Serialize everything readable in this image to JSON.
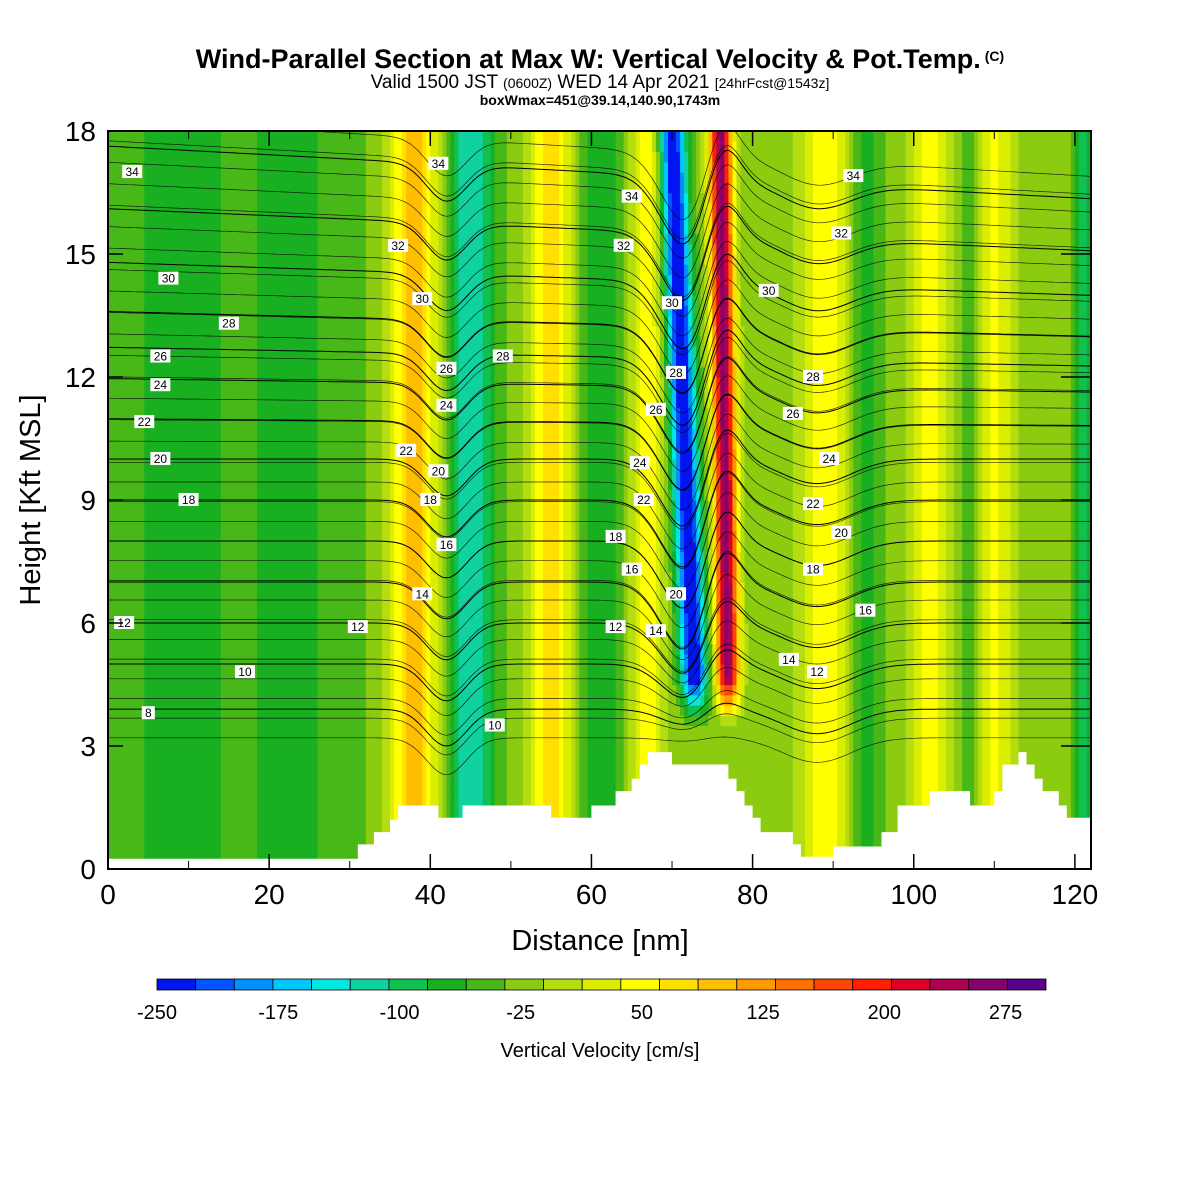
{
  "header": {
    "title": "Wind-Parallel Section at Max W: Vertical Velocity & Pot.Temp.",
    "title_mark": "(C)",
    "valid_prefix": "Valid 1500 JST",
    "valid_utc": "(0600Z)",
    "valid_date": "WED 14 Apr 2021",
    "forecast": "[24hrFcst@1543z]",
    "box_info": "boxWmax=451@39.14,140.90,1743m"
  },
  "chart_data": {
    "type": "heatmap",
    "subtype": "vertical cross-section: filled contours of vertical velocity with potential-temperature contour lines",
    "xlabel": "Distance [nm]",
    "ylabel": "Height [Kft MSL]",
    "xlim": [
      0,
      122
    ],
    "ylim": [
      0,
      18
    ],
    "x_ticks": [
      0,
      20,
      40,
      60,
      80,
      100,
      120
    ],
    "y_ticks": [
      0,
      3,
      6,
      9,
      12,
      15,
      18
    ],
    "colorbar": {
      "label": "Vertical Velocity [cm/s]",
      "tick_labels": [
        "-250",
        "-175",
        "-100",
        "-25",
        "50",
        "125",
        "200",
        "275"
      ],
      "tick_values": [
        -250,
        -175,
        -100,
        -25,
        50,
        125,
        200,
        275
      ],
      "bounds": [
        -250,
        -225,
        -200,
        -175,
        -150,
        -125,
        -100,
        -75,
        -50,
        -25,
        0,
        25,
        50,
        75,
        100,
        125,
        150,
        175,
        200,
        225,
        250,
        275,
        300
      ],
      "colors": [
        "#0015f0",
        "#0055ff",
        "#0090ff",
        "#00c8ff",
        "#00e8e0",
        "#10d2a0",
        "#10c050",
        "#18b020",
        "#48b818",
        "#8ccc10",
        "#b4de10",
        "#dcee00",
        "#ffff00",
        "#ffe000",
        "#ffbe00",
        "#ff9a00",
        "#ff7000",
        "#ff4600",
        "#ff1e00",
        "#dc0025",
        "#b00050",
        "#860070",
        "#5a0088"
      ]
    },
    "updraft_core": {
      "x": [
        76,
        77
      ],
      "y": [
        3.5,
        18
      ],
      "w_max_cm_s": 300
    },
    "downdraft_core": {
      "x": [
        70,
        73
      ],
      "y": [
        3.5,
        18
      ],
      "w_min_cm_s": -250
    },
    "vertical_velocity_bands": [
      {
        "x": 8,
        "width": 10,
        "w": -40
      },
      {
        "x": 24,
        "width": 8,
        "w": -35
      },
      {
        "x": 38,
        "width": 3,
        "w": 130
      },
      {
        "x": 45,
        "width": 3,
        "w": -110
      },
      {
        "x": 55,
        "width": 2.5,
        "w": 110
      },
      {
        "x": 61,
        "width": 2.5,
        "w": -60
      },
      {
        "x": 67,
        "width": 2,
        "w": 80
      },
      {
        "x": 89,
        "width": 3,
        "w": 90
      },
      {
        "x": 94,
        "width": 2,
        "w": -50
      },
      {
        "x": 102,
        "width": 2.5,
        "w": 80
      },
      {
        "x": 107,
        "width": 1.5,
        "w": -40
      },
      {
        "x": 110,
        "width": 2.5,
        "w": 70
      },
      {
        "x": 121,
        "width": 1,
        "w": -70
      }
    ],
    "terrain": {
      "x": [
        0,
        30,
        31,
        33,
        35,
        36,
        40,
        41,
        44,
        54,
        55,
        56,
        57,
        59,
        60,
        61,
        62,
        63,
        64,
        65,
        66,
        67,
        69,
        70,
        72,
        73,
        74,
        77,
        78,
        79,
        80,
        81,
        85,
        86,
        90,
        92,
        96,
        98,
        102,
        103,
        106,
        107,
        110,
        111,
        113,
        114,
        115,
        116,
        118,
        119,
        121,
        122
      ],
      "height": [
        0.25,
        0.25,
        0.6,
        0.9,
        1.2,
        1.55,
        1.55,
        1.25,
        1.55,
        1.55,
        1.25,
        1.25,
        1.25,
        1.25,
        1.55,
        1.55,
        1.55,
        1.9,
        1.9,
        2.2,
        2.55,
        2.85,
        2.85,
        2.55,
        2.55,
        2.55,
        2.55,
        2.2,
        1.9,
        1.55,
        1.25,
        0.9,
        0.6,
        0.3,
        0.55,
        0.55,
        0.9,
        1.55,
        1.9,
        1.9,
        1.9,
        1.55,
        1.9,
        2.55,
        2.85,
        2.55,
        2.2,
        1.9,
        1.55,
        1.25,
        1.25,
        1.25
      ]
    },
    "theta_contours": {
      "levels": [
        8,
        10,
        12,
        14,
        16,
        18,
        20,
        22,
        24,
        26,
        28,
        30,
        32,
        34
      ],
      "base_height_kft": {
        "8": 3.9,
        "10": 5.0,
        "12": 6.0,
        "14": 7.0,
        "16": 8.0,
        "18": 9.0,
        "20": 10.0,
        "22": 10.9,
        "24": 11.8,
        "26": 12.5,
        "28": 13.3,
        "30": 14.4,
        "32": 15.6,
        "34": 17.0
      },
      "labels": [
        {
          "v": "34",
          "x": 3,
          "y": 17.0
        },
        {
          "v": "30",
          "x": 7.5,
          "y": 14.4
        },
        {
          "v": "28",
          "x": 15,
          "y": 13.3
        },
        {
          "v": "26",
          "x": 6.5,
          "y": 12.5
        },
        {
          "v": "24",
          "x": 6.5,
          "y": 11.8
        },
        {
          "v": "22",
          "x": 4.5,
          "y": 10.9
        },
        {
          "v": "20",
          "x": 6.5,
          "y": 10.0
        },
        {
          "v": "18",
          "x": 10,
          "y": 9.0
        },
        {
          "v": "12",
          "x": 2,
          "y": 6.0
        },
        {
          "v": "10",
          "x": 17,
          "y": 4.8
        },
        {
          "v": "8",
          "x": 5,
          "y": 3.8
        },
        {
          "v": "12",
          "x": 31,
          "y": 5.9
        },
        {
          "v": "32",
          "x": 36,
          "y": 15.2
        },
        {
          "v": "30",
          "x": 39,
          "y": 13.9
        },
        {
          "v": "34",
          "x": 41,
          "y": 17.2
        },
        {
          "v": "26",
          "x": 42,
          "y": 12.2
        },
        {
          "v": "24",
          "x": 42,
          "y": 11.3
        },
        {
          "v": "22",
          "x": 37,
          "y": 10.2
        },
        {
          "v": "20",
          "x": 41,
          "y": 9.7
        },
        {
          "v": "18",
          "x": 40,
          "y": 9.0
        },
        {
          "v": "16",
          "x": 42,
          "y": 7.9
        },
        {
          "v": "14",
          "x": 39,
          "y": 6.7
        },
        {
          "v": "10",
          "x": 48,
          "y": 3.5
        },
        {
          "v": "28",
          "x": 49,
          "y": 12.5
        },
        {
          "v": "34",
          "x": 65,
          "y": 16.4
        },
        {
          "v": "32",
          "x": 64,
          "y": 15.2
        },
        {
          "v": "30",
          "x": 70,
          "y": 13.8
        },
        {
          "v": "28",
          "x": 70.5,
          "y": 12.1
        },
        {
          "v": "26",
          "x": 68,
          "y": 11.2
        },
        {
          "v": "24",
          "x": 66,
          "y": 9.9
        },
        {
          "v": "22",
          "x": 66.5,
          "y": 9.0
        },
        {
          "v": "18",
          "x": 63,
          "y": 8.1
        },
        {
          "v": "16",
          "x": 65,
          "y": 7.3
        },
        {
          "v": "20",
          "x": 70.5,
          "y": 6.7
        },
        {
          "v": "12",
          "x": 63,
          "y": 5.9
        },
        {
          "v": "14",
          "x": 68,
          "y": 5.8
        },
        {
          "v": "30",
          "x": 82,
          "y": 14.1
        },
        {
          "v": "32",
          "x": 91,
          "y": 15.5
        },
        {
          "v": "34",
          "x": 92.5,
          "y": 16.9
        },
        {
          "v": "28",
          "x": 87.5,
          "y": 12.0
        },
        {
          "v": "26",
          "x": 85,
          "y": 11.1
        },
        {
          "v": "24",
          "x": 89.5,
          "y": 10.0
        },
        {
          "v": "22",
          "x": 87.5,
          "y": 8.9
        },
        {
          "v": "20",
          "x": 91,
          "y": 8.2
        },
        {
          "v": "18",
          "x": 87.5,
          "y": 7.3
        },
        {
          "v": "16",
          "x": 94,
          "y": 6.3
        },
        {
          "v": "14",
          "x": 84.5,
          "y": 5.1
        },
        {
          "v": "12",
          "x": 88,
          "y": 4.8
        }
      ]
    }
  }
}
